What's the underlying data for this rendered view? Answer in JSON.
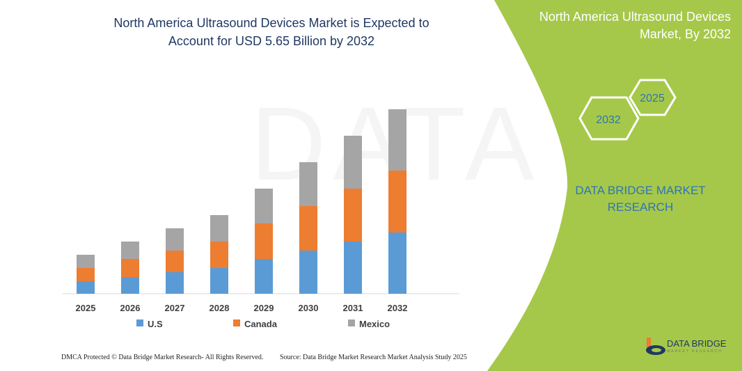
{
  "title": "North America Ultrasound Devices Market is Expected to Account for USD 5.65 Billion by 2032",
  "title_lines": [
    "North America Ultrasound Devices Market is Expected to",
    "Account for USD 5.65 Billion by 2032"
  ],
  "side_panel": {
    "title_lines": [
      "North America Ultrasound Devices",
      "Market, By 2032"
    ],
    "hex_1": "2025",
    "hex_2": "2032",
    "brand_lines": [
      "DATA BRIDGE MARKET",
      "RESEARCH"
    ],
    "bg_color": "#a5c84a"
  },
  "logo": {
    "text": "DATA BRIDGE",
    "sub": "MARKET RESEARCH"
  },
  "footer": {
    "left": "DMCA Protected © Data Bridge Market Research- All Rights Reserved.",
    "right": "Source: Data Bridge Market Research Market Analysis Study 2025"
  },
  "chart_data": {
    "type": "bar",
    "stacked": true,
    "categories": [
      "2025",
      "2026",
      "2027",
      "2028",
      "2029",
      "2030",
      "2031",
      "2032"
    ],
    "series": [
      {
        "name": "U.S",
        "color": "#5b9bd5",
        "values": [
          18,
          24,
          31,
          37,
          50,
          62,
          75,
          88
        ]
      },
      {
        "name": "Canada",
        "color": "#ed7d31",
        "values": [
          19,
          26,
          31,
          38,
          51,
          64,
          76,
          89
        ]
      },
      {
        "name": "Mexico",
        "color": "#a5a5a5",
        "values": [
          19,
          25,
          32,
          38,
          50,
          63,
          76,
          88
        ]
      }
    ],
    "ylim": [
      0,
      265
    ],
    "grid": false,
    "legend": "bottom",
    "xlabel": "",
    "ylabel": ""
  }
}
